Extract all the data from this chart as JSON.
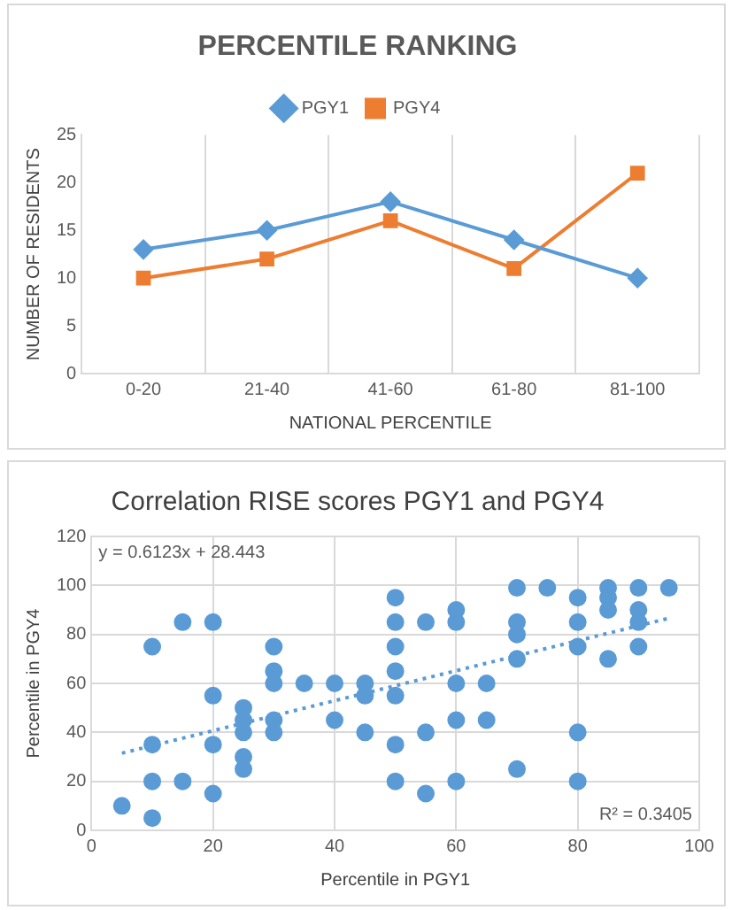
{
  "chart_data": [
    {
      "type": "line",
      "title": "PERCENTILE RANKING",
      "xlabel": "NATIONAL PERCENTILE",
      "ylabel": "NUMBER OF RESIDENTS",
      "categories": [
        "0-20",
        "21-40",
        "41-60",
        "61-80",
        "81-100"
      ],
      "series": [
        {
          "name": "PGY1",
          "color": "#5b9bd5",
          "values": [
            13,
            15,
            18,
            14,
            10
          ],
          "marker": "diamond"
        },
        {
          "name": "PGY4",
          "color": "#ed7d31",
          "values": [
            10,
            12,
            16,
            11,
            21
          ],
          "marker": "square"
        }
      ],
      "ylim": [
        0,
        25
      ],
      "yticks": [
        0,
        5,
        10,
        15,
        20,
        25
      ],
      "grid": "x",
      "legend": "top",
      "line_style": "solid"
    },
    {
      "type": "scatter",
      "title": "Correlation RISE scores PGY1 and PGY4",
      "xlabel": "Percentile in PGY1",
      "ylabel": "Percentile in PGY4",
      "annotations": [
        "y = 0.6123x + 28.443",
        "R² = 0.3405"
      ],
      "series": [
        {
          "color": "#5b9bd5",
          "x": [
            5,
            10,
            10,
            10,
            10,
            15,
            15,
            20,
            20,
            20,
            20,
            25,
            25,
            25,
            25,
            25,
            30,
            30,
            30,
            30,
            30,
            35,
            40,
            40,
            45,
            45,
            45,
            50,
            50,
            50,
            50,
            50,
            50,
            50,
            55,
            55,
            55,
            60,
            60,
            60,
            60,
            60,
            65,
            65,
            70,
            70,
            70,
            70,
            70,
            75,
            80,
            80,
            80,
            80,
            80,
            85,
            85,
            85,
            85,
            90,
            90,
            90,
            90,
            95
          ],
          "values": [
            10,
            75,
            35,
            20,
            5,
            85,
            20,
            85,
            55,
            35,
            15,
            50,
            45,
            40,
            30,
            25,
            75,
            65,
            60,
            45,
            40,
            60,
            60,
            45,
            60,
            55,
            40,
            95,
            85,
            75,
            65,
            55,
            35,
            20,
            85,
            40,
            15,
            90,
            85,
            60,
            45,
            20,
            60,
            45,
            99,
            85,
            80,
            70,
            25,
            99,
            95,
            85,
            75,
            40,
            20,
            99,
            95,
            90,
            70,
            99,
            90,
            85,
            75,
            99
          ],
          "marker": "circle"
        },
        {
          "type": "line",
          "color": "#5b9bd5",
          "x": [
            5,
            95
          ],
          "values": [
            31.5,
            86.6
          ],
          "line_style": "dotted",
          "marker": "none"
        }
      ],
      "xlim": [
        0,
        100
      ],
      "xticks": [
        0,
        20,
        40,
        60,
        80,
        100
      ],
      "ylim": [
        0,
        120
      ],
      "yticks": [
        0,
        20,
        40,
        60,
        80,
        100,
        120
      ],
      "grid": true,
      "legend": false
    }
  ]
}
